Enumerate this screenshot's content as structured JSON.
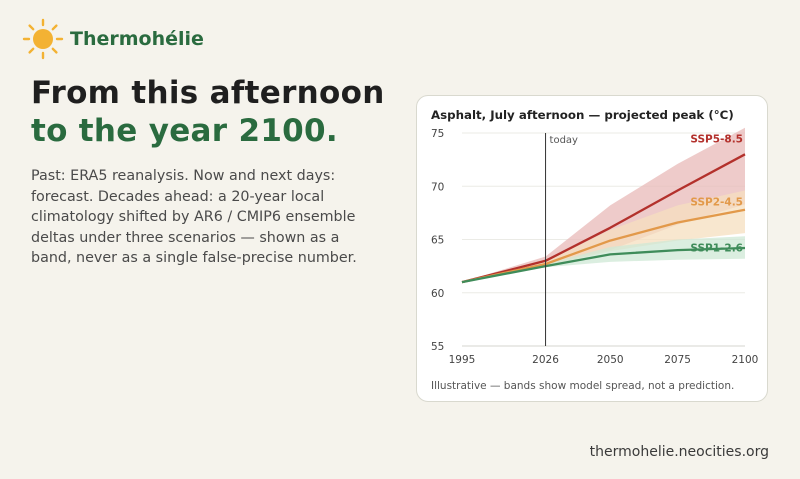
{
  "brand": {
    "name": "Thermohélie",
    "logo_icon": "sun-icon",
    "logo_color": "#f3b233"
  },
  "headline": {
    "line1": "From this afternoon",
    "line2": "to the year 2100."
  },
  "description": "Past: ERA5 reanalysis. Now and next days: forecast. Decades ahead: a 20-year local climatology shifted by AR6 / CMIP6 ensemble deltas under three scenarios — shown as a band, never as a single false-precise number.",
  "footer": {
    "url": "thermohelie.neocities.org"
  },
  "chart_data": {
    "type": "line",
    "title": "Asphalt, July afternoon — projected peak (°C)",
    "caption": "Illustrative — bands show model spread, not a prediction.",
    "xlabel": "",
    "ylabel": "",
    "xlim": [
      1995,
      2100
    ],
    "ylim": [
      55,
      75
    ],
    "x_ticks": [
      1995,
      2026,
      2050,
      2075,
      2100
    ],
    "y_ticks": [
      55,
      60,
      65,
      70,
      75
    ],
    "grid": "horizontal",
    "marker": {
      "x": 2026,
      "label": "today"
    },
    "series": [
      {
        "name": "SSP5-8.5",
        "color": "#b3312c",
        "band_color": "#e8b9b8",
        "x": [
          1995,
          2026,
          2050,
          2075,
          2100
        ],
        "values": [
          61.0,
          63.0,
          66.1,
          69.6,
          73.0
        ],
        "low": [
          61.0,
          62.7,
          64.0,
          66.4,
          68.3
        ],
        "high": [
          61.0,
          63.4,
          68.2,
          72.1,
          75.5
        ]
      },
      {
        "name": "SSP2-4.5",
        "color": "#e2994a",
        "band_color": "#f6dfbf",
        "x": [
          1995,
          2026,
          2050,
          2075,
          2100
        ],
        "values": [
          61.0,
          62.7,
          64.9,
          66.6,
          67.8
        ],
        "low": [
          61.0,
          62.5,
          63.9,
          64.9,
          65.6
        ],
        "high": [
          61.0,
          62.9,
          65.9,
          68.2,
          69.6
        ]
      },
      {
        "name": "SSP1-2.6",
        "color": "#3f8c5a",
        "band_color": "#cfe8d6",
        "x": [
          1995,
          2026,
          2050,
          2075,
          2100
        ],
        "values": [
          61.0,
          62.5,
          63.6,
          64.0,
          64.2
        ],
        "low": [
          61.0,
          62.4,
          62.9,
          63.1,
          63.2
        ],
        "high": [
          61.0,
          62.7,
          64.3,
          65.0,
          65.3
        ]
      }
    ]
  }
}
